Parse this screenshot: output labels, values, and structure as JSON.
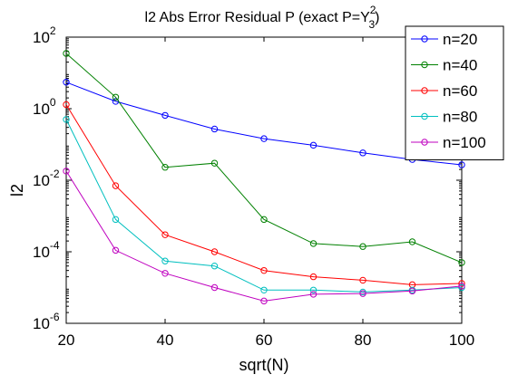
{
  "chart_data": {
    "type": "line",
    "title": {
      "prefix": "l2 Abs Error Residual P (exact P=Y",
      "superscript": "2",
      "subscript": "3",
      "suffix": ")"
    },
    "xlabel": "sqrt(N)",
    "ylabel": "l2",
    "xlim": [
      20,
      100
    ],
    "ylim": [
      1e-06,
      100
    ],
    "y_scale": "log",
    "x_ticks": [
      20,
      40,
      60,
      80,
      100
    ],
    "y_ticks": [
      {
        "value": 1e-06,
        "base": "10",
        "exp": "-6"
      },
      {
        "value": 0.0001,
        "base": "10",
        "exp": "-4"
      },
      {
        "value": 0.01,
        "base": "10",
        "exp": "-2"
      },
      {
        "value": 1,
        "base": "10",
        "exp": "0"
      },
      {
        "value": 100,
        "base": "10",
        "exp": "2"
      }
    ],
    "grid": false,
    "legend_position": "top-right",
    "x": [
      20,
      30,
      40,
      50,
      60,
      70,
      80,
      90,
      100
    ],
    "series": [
      {
        "name": "n=20",
        "color": "#0000ff",
        "values": [
          5.5,
          1.6,
          0.65,
          0.27,
          0.145,
          0.095,
          0.058,
          0.038,
          0.027
        ]
      },
      {
        "name": "n=40",
        "color": "#008000",
        "values": [
          35,
          2.1,
          0.023,
          0.03,
          0.0008,
          0.00017,
          0.00014,
          0.00019,
          5e-05
        ]
      },
      {
        "name": "n=60",
        "color": "#ff0000",
        "values": [
          1.3,
          0.007,
          0.0003,
          0.0001,
          3e-05,
          2e-05,
          1.6e-05,
          1.2e-05,
          1.3e-05
        ]
      },
      {
        "name": "n=80",
        "color": "#00bfbf",
        "values": [
          0.5,
          0.0008,
          5.5e-05,
          4e-05,
          8.5e-06,
          8.5e-06,
          7.5e-06,
          8.5e-06,
          1e-05
        ]
      },
      {
        "name": "n=100",
        "color": "#bf00bf",
        "values": [
          0.018,
          0.00011,
          2.5e-05,
          1e-05,
          4.2e-06,
          6.5e-06,
          6.8e-06,
          8e-06,
          1.1e-05
        ]
      }
    ]
  }
}
